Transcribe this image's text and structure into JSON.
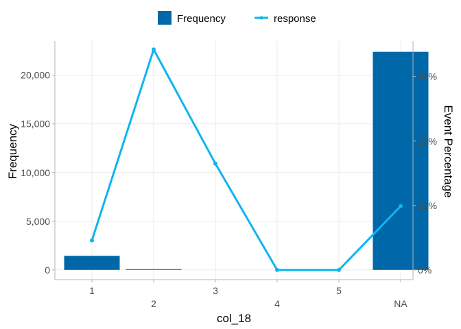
{
  "chart_data": {
    "type": "bar",
    "categories": [
      "1",
      "2",
      "3",
      "4",
      "5",
      "NA"
    ],
    "xlabel": "col_18",
    "ylabel": "Frequency",
    "y2label": "Event Percentage",
    "series": [
      {
        "name": "Frequency",
        "kind": "bar",
        "axis": "left",
        "values": [
          1450,
          80,
          0,
          0,
          0,
          22400
        ]
      },
      {
        "name": "response",
        "kind": "line",
        "axis": "right",
        "values": [
          4.6,
          34.2,
          16.5,
          0,
          0,
          9.9
        ]
      }
    ],
    "ylim": [
      -1000,
      23500
    ],
    "yticks": [
      0,
      5000,
      10000,
      15000,
      20000
    ],
    "ytick_labels": [
      "0",
      "5,000",
      "10,000",
      "15,000",
      "20,000"
    ],
    "y2lim": [
      -1.5,
      35.5
    ],
    "y2ticks": [
      0,
      10,
      20,
      30
    ],
    "y2tick_labels": [
      "0%",
      "10%",
      "20%",
      "30%"
    ],
    "grid": true,
    "legend_position": "top",
    "colors": {
      "bar": "#0068a8",
      "line": "#10b4f0",
      "grid": "#ebebeb",
      "axis": "#b3b3b3",
      "text": "#4d4d4d"
    }
  }
}
